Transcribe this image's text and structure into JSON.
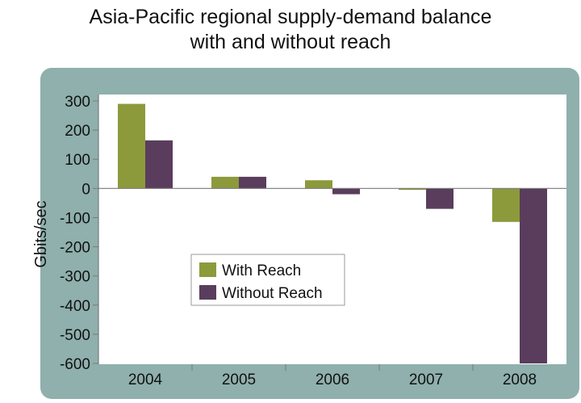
{
  "title_line1": "Asia-Pacific regional supply-demand balance",
  "title_line2": "with and without reach",
  "colors": {
    "with_reach": "#8c9a3c",
    "without_reach": "#5a3d5c",
    "panel": "#8fb0ad",
    "plot_bg": "#ffffff"
  },
  "chart_data": {
    "type": "bar",
    "categories": [
      "2004",
      "2005",
      "2006",
      "2007",
      "2008"
    ],
    "series": [
      {
        "name": "With Reach",
        "values": [
          290,
          40,
          28,
          -5,
          -115
        ]
      },
      {
        "name": "Without Reach",
        "values": [
          165,
          40,
          -20,
          -70,
          -600
        ]
      }
    ],
    "ylabel": "Gbits/sec",
    "ylim": [
      -600,
      300
    ],
    "yticks": [
      300,
      200,
      100,
      0,
      -100,
      -200,
      -300,
      -400,
      -500,
      -600
    ],
    "grid": false,
    "legend_position": "center-left"
  }
}
